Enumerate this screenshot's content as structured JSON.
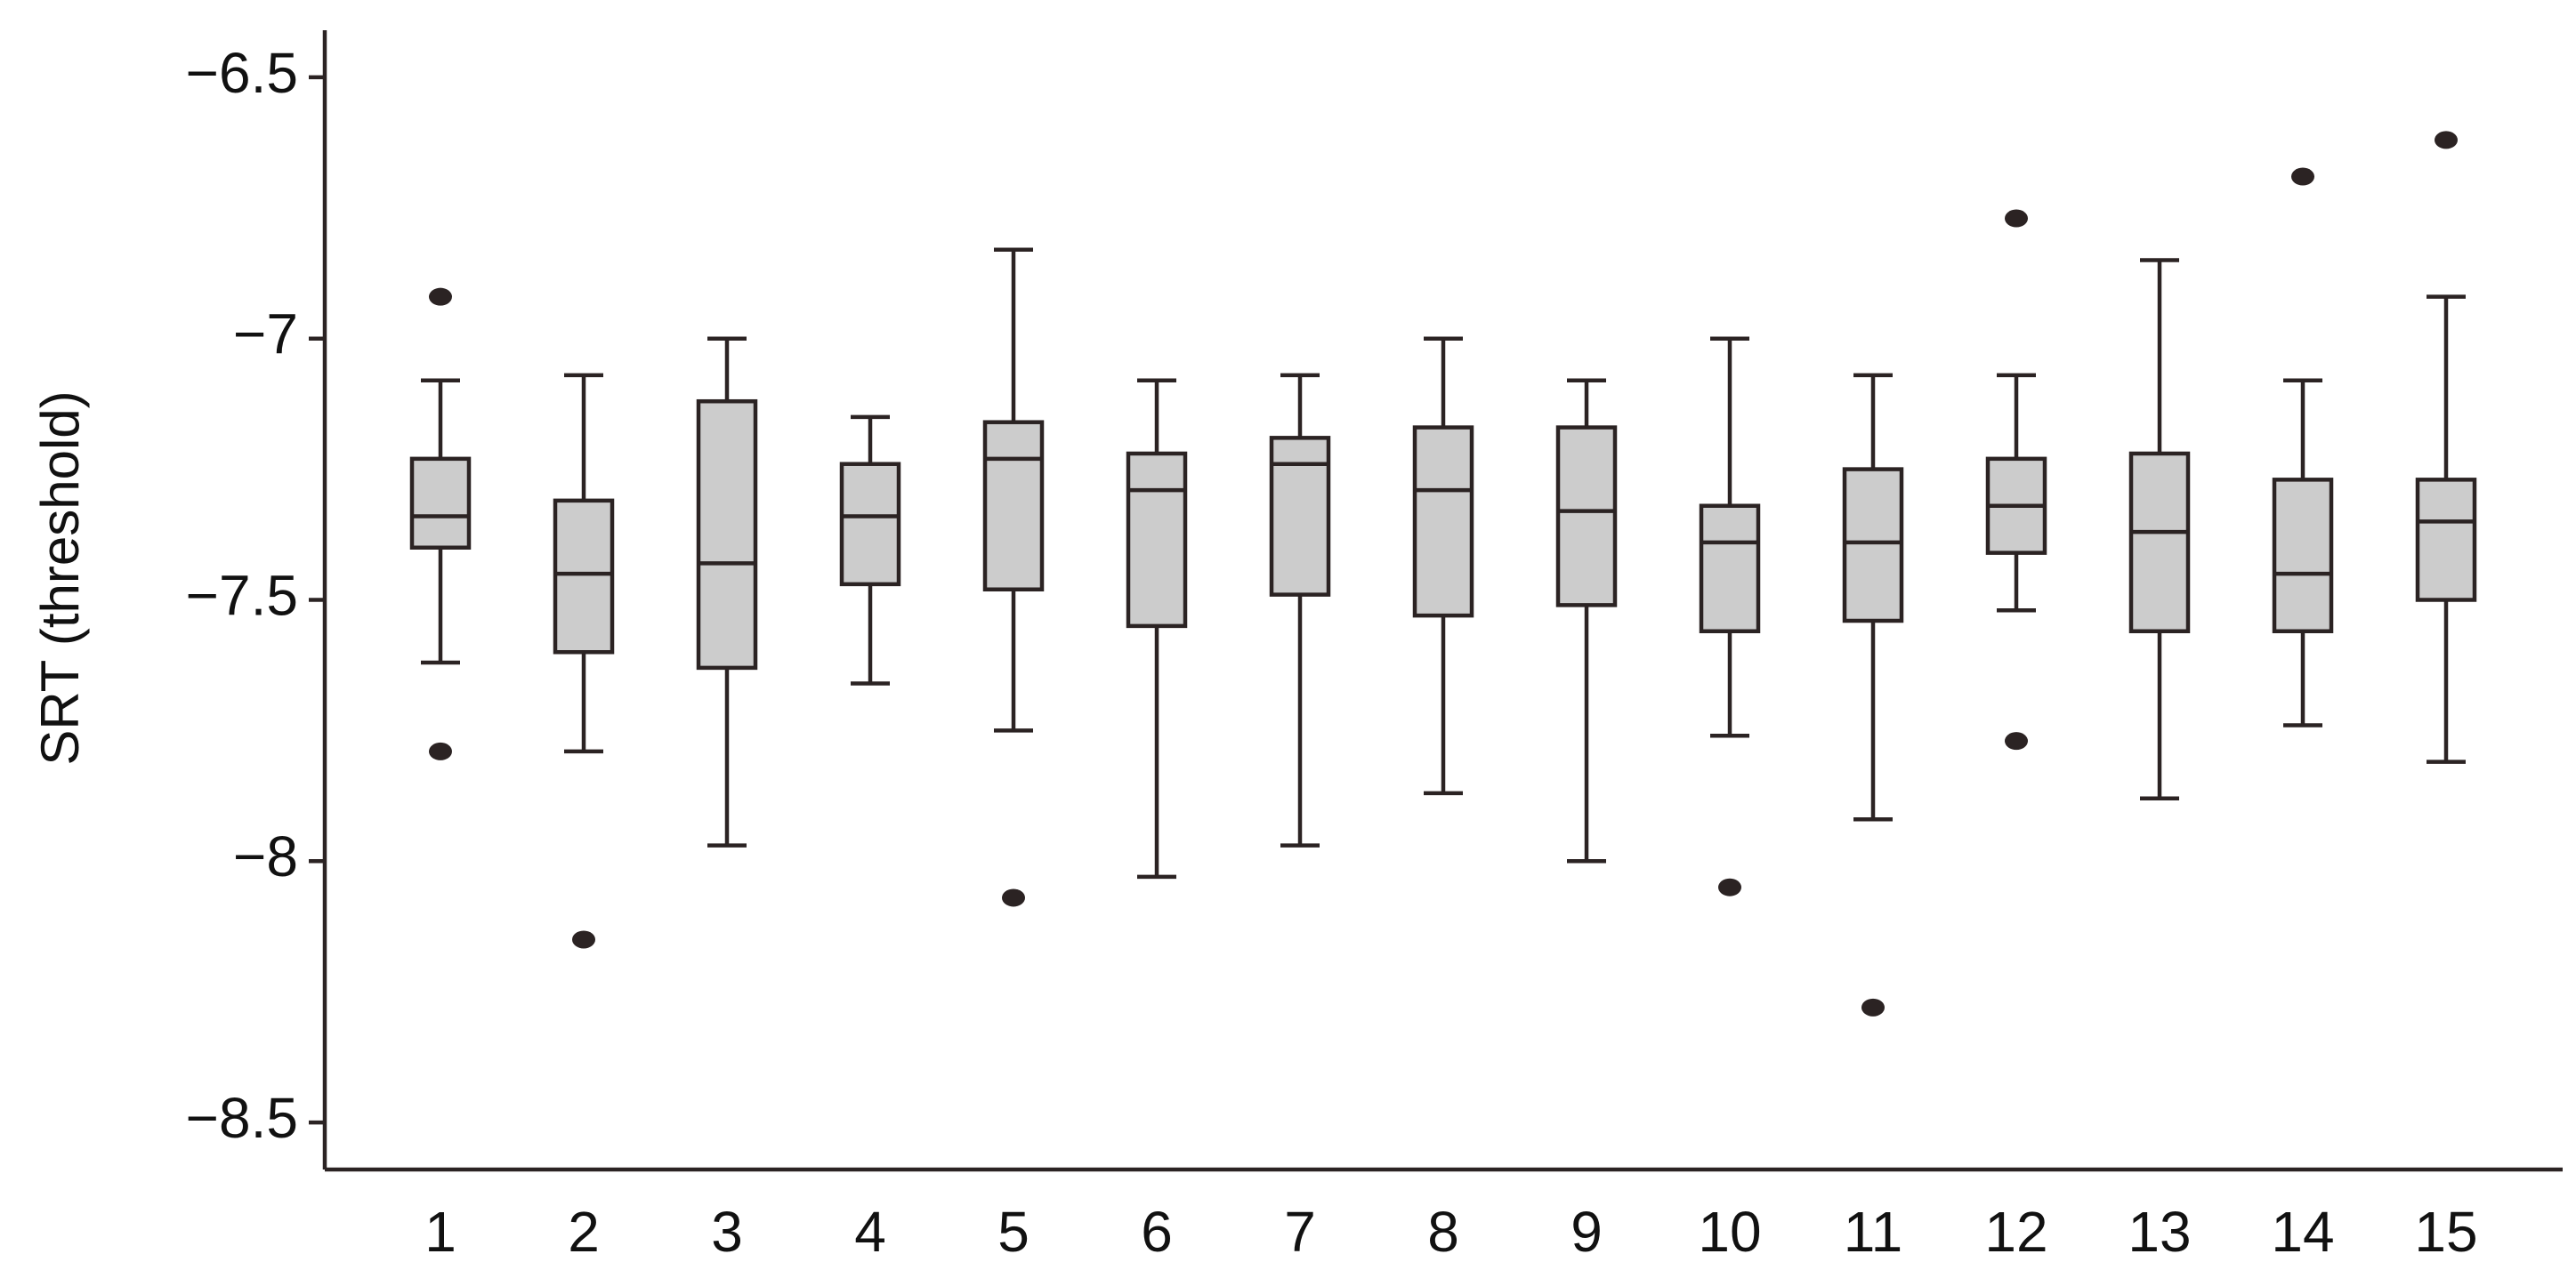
{
  "chart_data": {
    "type": "box",
    "y_label": "SRT (threshold)",
    "categories": [
      "1",
      "2",
      "3",
      "4",
      "5",
      "6",
      "7",
      "8",
      "9",
      "10",
      "11",
      "12",
      "13",
      "14",
      "15"
    ],
    "boxes": [
      {
        "min": -7.62,
        "q1": -7.4,
        "median": -7.34,
        "q3": -7.23,
        "max": -7.08,
        "outliers": [
          -6.92,
          -7.79
        ]
      },
      {
        "min": -7.79,
        "q1": -7.6,
        "median": -7.45,
        "q3": -7.31,
        "max": -7.07,
        "outliers": [
          -8.15
        ]
      },
      {
        "min": -7.97,
        "q1": -7.63,
        "median": -7.43,
        "q3": -7.12,
        "max": -7.0,
        "outliers": []
      },
      {
        "min": -7.66,
        "q1": -7.47,
        "median": -7.34,
        "q3": -7.24,
        "max": -7.15,
        "outliers": []
      },
      {
        "min": -7.75,
        "q1": -7.48,
        "median": -7.23,
        "q3": -7.16,
        "max": -6.83,
        "outliers": [
          -8.07
        ]
      },
      {
        "min": -8.03,
        "q1": -7.55,
        "median": -7.29,
        "q3": -7.22,
        "max": -7.08,
        "outliers": []
      },
      {
        "min": -7.97,
        "q1": -7.49,
        "median": -7.24,
        "q3": -7.19,
        "max": -7.07,
        "outliers": []
      },
      {
        "min": -7.87,
        "q1": -7.53,
        "median": -7.29,
        "q3": -7.17,
        "max": -7.0,
        "outliers": []
      },
      {
        "min": -8.0,
        "q1": -7.51,
        "median": -7.33,
        "q3": -7.17,
        "max": -7.08,
        "outliers": []
      },
      {
        "min": -7.76,
        "q1": -7.56,
        "median": -7.39,
        "q3": -7.32,
        "max": -7.0,
        "outliers": [
          -8.05
        ]
      },
      {
        "min": -7.92,
        "q1": -7.54,
        "median": -7.39,
        "q3": -7.25,
        "max": -7.07,
        "outliers": [
          -8.28
        ]
      },
      {
        "min": -7.52,
        "q1": -7.41,
        "median": -7.32,
        "q3": -7.23,
        "max": -7.07,
        "outliers": [
          -6.77,
          -7.77
        ]
      },
      {
        "min": -7.88,
        "q1": -7.56,
        "median": -7.37,
        "q3": -7.22,
        "max": -6.85,
        "outliers": []
      },
      {
        "min": -7.74,
        "q1": -7.56,
        "median": -7.45,
        "q3": -7.27,
        "max": -7.08,
        "outliers": [
          -6.69
        ]
      },
      {
        "min": -7.81,
        "q1": -7.5,
        "median": -7.35,
        "q3": -7.27,
        "max": -6.92,
        "outliers": [
          -6.62
        ]
      }
    ],
    "box_color": "#cccccc",
    "line_color": "#2b2323",
    "ylim": [
      -8.59,
      -6.41
    ],
    "yticks": [
      {
        "value": -6.5,
        "label": "−6.5"
      },
      {
        "value": -7,
        "label": "−7"
      },
      {
        "value": -7.5,
        "label": "−7.5"
      },
      {
        "value": -8,
        "label": "−8"
      },
      {
        "value": -8.5,
        "label": "−8.5"
      }
    ]
  }
}
